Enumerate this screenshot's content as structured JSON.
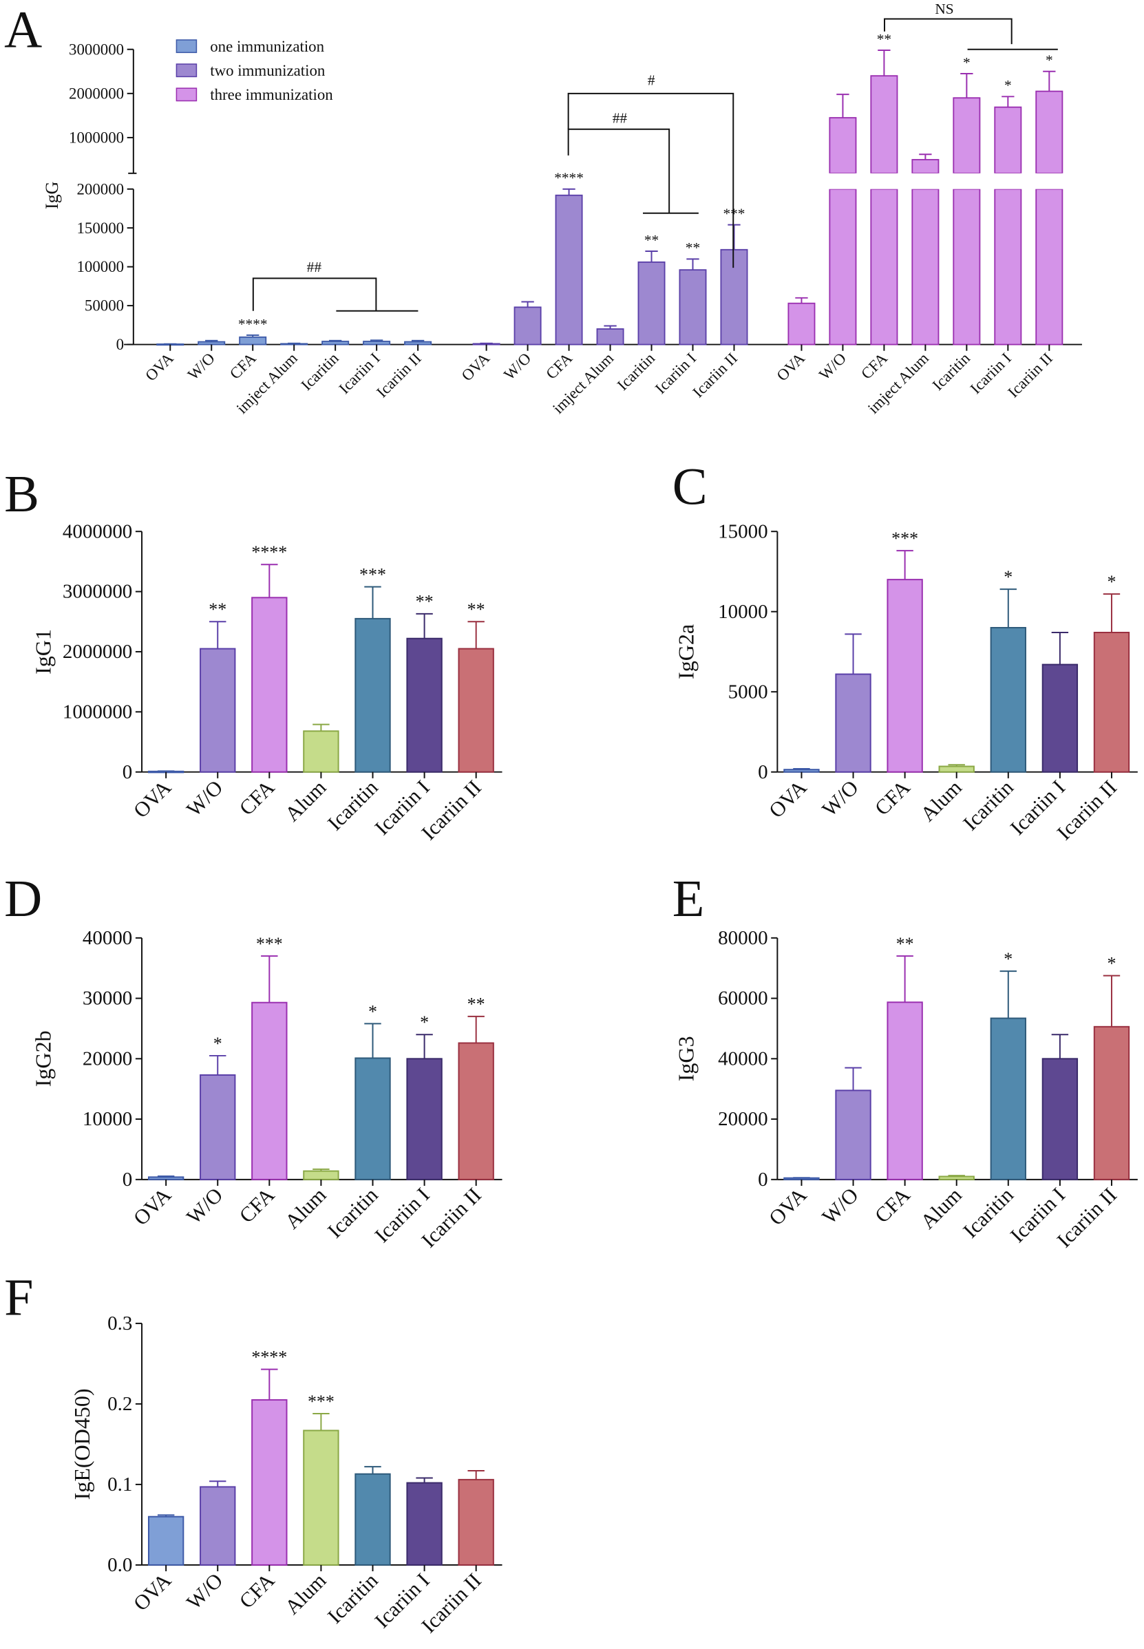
{
  "categories_A": [
    "OVA",
    "W/O",
    "CFA",
    "imject Alum",
    "Icaritin",
    "Icariin I",
    "Icariin II"
  ],
  "categories": [
    "OVA",
    "W/O",
    "CFA",
    "Alum",
    "Icaritin",
    "Icariin I",
    "Icariin II"
  ],
  "colors": {
    "fill": [
      "#7f9fd6",
      "#9d88d0",
      "#d493e8",
      "#c5dc8a",
      "#5289ad",
      "#5e4891",
      "#c97075"
    ],
    "stroke": [
      "#3d5aa8",
      "#5a3fa8",
      "#9a2fb0",
      "#8aa845",
      "#2e5a7a",
      "#3a2a6a",
      "#9a3040"
    ]
  },
  "chart_data": [
    {
      "panel": "A",
      "type": "bar",
      "ylabel": "IgG",
      "y_axis_break": true,
      "yticks_lower": [
        "0",
        "50000",
        "100000",
        "150000",
        "200000"
      ],
      "yticks_upper": [
        "1000000",
        "2000000",
        "3000000"
      ],
      "legend": [
        "one immunization",
        "two  immunization",
        "three immunization"
      ],
      "series": [
        {
          "name": "one immunization",
          "values": [
            500,
            3500,
            9500,
            1000,
            4000,
            4000,
            3500
          ],
          "error_upper": [
            700,
            5000,
            12000,
            1500,
            5000,
            5500,
            5000
          ],
          "stars": [
            "",
            "",
            "****",
            "",
            "",
            "",
            ""
          ]
        },
        {
          "name": "two immunization",
          "values": [
            1000,
            48000,
            192000,
            20000,
            106000,
            96000,
            122000
          ],
          "error_upper": [
            1500,
            55000,
            200000,
            24000,
            120000,
            110000,
            154000
          ],
          "stars": [
            "",
            "",
            "****",
            "",
            "**",
            "**",
            "***"
          ]
        },
        {
          "name": "three immunization",
          "values": [
            53000,
            1450000,
            2400000,
            500000,
            1900000,
            1690000,
            2050000
          ],
          "error_upper": [
            60000,
            1980000,
            2980000,
            620000,
            2450000,
            1930000,
            2500000
          ],
          "stars": [
            "",
            "",
            "**",
            "",
            "*",
            "*",
            "*"
          ]
        }
      ],
      "comparisons": [
        "##",
        "##",
        "#",
        "NS"
      ]
    },
    {
      "panel": "B",
      "type": "bar",
      "ylabel": "IgG1",
      "ylim": [
        0,
        4000000
      ],
      "yticks": [
        "0",
        "1000000",
        "2000000",
        "3000000",
        "4000000"
      ],
      "values": [
        10000,
        2050000,
        2900000,
        680000,
        2550000,
        2220000,
        2050000
      ],
      "error_upper": [
        15000,
        2500000,
        3450000,
        790000,
        3080000,
        2630000,
        2500000
      ],
      "stars": [
        "",
        "**",
        "****",
        "",
        "***",
        "**",
        "**"
      ]
    },
    {
      "panel": "C",
      "type": "bar",
      "ylabel": "IgG2a",
      "ylim": [
        0,
        15000
      ],
      "yticks": [
        "0",
        "5000",
        "10000",
        "15000"
      ],
      "values": [
        150,
        6100,
        12000,
        350,
        9000,
        6700,
        8700
      ],
      "error_upper": [
        200,
        8600,
        13800,
        450,
        11400,
        8700,
        11100
      ],
      "stars": [
        "",
        "",
        "***",
        "",
        "*",
        "",
        "*"
      ]
    },
    {
      "panel": "D",
      "type": "bar",
      "ylabel": "IgG2b",
      "ylim": [
        0,
        40000
      ],
      "yticks": [
        "0",
        "10000",
        "20000",
        "30000",
        "40000"
      ],
      "values": [
        400,
        17300,
        29300,
        1400,
        20100,
        20000,
        22600
      ],
      "error_upper": [
        550,
        20500,
        37000,
        1700,
        25800,
        24000,
        27000
      ],
      "stars": [
        "",
        "*",
        "***",
        "",
        "*",
        "*",
        "**"
      ]
    },
    {
      "panel": "E",
      "type": "bar",
      "ylabel": "IgG3",
      "ylim": [
        0,
        80000
      ],
      "yticks": [
        "0",
        "20000",
        "40000",
        "60000",
        "80000"
      ],
      "values": [
        500,
        29500,
        58700,
        1000,
        53400,
        40000,
        50600
      ],
      "error_upper": [
        600,
        37000,
        74000,
        1300,
        69000,
        48000,
        67500
      ],
      "stars": [
        "",
        "",
        "**",
        "",
        "*",
        "",
        "*"
      ]
    },
    {
      "panel": "F",
      "type": "bar",
      "ylabel": "IgE(OD450)",
      "ylim": [
        0,
        0.3
      ],
      "yticks": [
        "0.0",
        "0.1",
        "0.2",
        "0.3"
      ],
      "values": [
        0.06,
        0.097,
        0.205,
        0.167,
        0.113,
        0.102,
        0.106
      ],
      "error_upper": [
        0.062,
        0.104,
        0.243,
        0.188,
        0.122,
        0.108,
        0.117
      ],
      "stars": [
        "",
        "",
        "****",
        "***",
        "",
        "",
        ""
      ]
    }
  ]
}
